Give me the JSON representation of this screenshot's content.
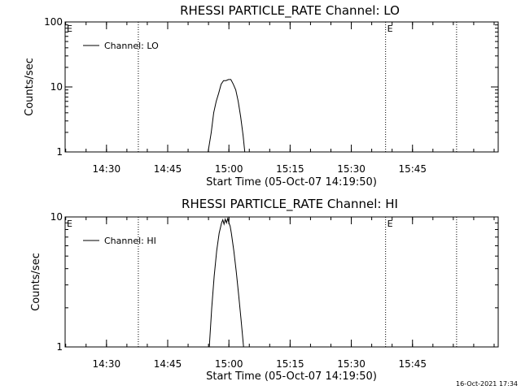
{
  "footer": {
    "timestamp": "16-Oct-2021 17:34"
  },
  "chart_data": [
    {
      "type": "line",
      "title": "RHESSI PARTICLE_RATE Channel: LO",
      "xlabel": "Start Time (05-Oct-07 14:19:50)",
      "ylabel": "Counts/sec",
      "yscale": "log",
      "xlim": [
        14.331,
        16.1
      ],
      "ylim": [
        1,
        100
      ],
      "xticks": [
        {
          "v": 14.5,
          "label": "14:30"
        },
        {
          "v": 14.75,
          "label": "14:45"
        },
        {
          "v": 15.0,
          "label": "15:00"
        },
        {
          "v": 15.25,
          "label": "15:15"
        },
        {
          "v": 15.5,
          "label": "15:30"
        },
        {
          "v": 15.75,
          "label": "15:45"
        }
      ],
      "yticks": [
        {
          "v": 1,
          "label": "1"
        },
        {
          "v": 10,
          "label": "10"
        },
        {
          "v": 100,
          "label": "100"
        }
      ],
      "grid": false,
      "legend": {
        "position": "top-left",
        "entries": [
          "Channel: LO"
        ]
      },
      "vlines": [
        14.63,
        15.64,
        15.93
      ],
      "markers": [
        {
          "x": 14.331,
          "text": "E"
        },
        {
          "x": 15.64,
          "text": "E"
        }
      ],
      "series": [
        {
          "name": "Channel: LO",
          "color": "#000000",
          "x": [
            14.915,
            14.928,
            14.938,
            14.948,
            14.958,
            14.968,
            14.978,
            14.988,
            14.998,
            15.008,
            15.018,
            15.028,
            15.038,
            15.048,
            15.058,
            15.065
          ],
          "y": [
            1.0,
            2.0,
            4.0,
            6.0,
            8.0,
            11.0,
            12.5,
            12.5,
            13.0,
            13.0,
            11.0,
            9.0,
            6.0,
            3.5,
            1.8,
            1.0
          ]
        }
      ]
    },
    {
      "type": "line",
      "title": "RHESSI PARTICLE_RATE Channel: HI",
      "xlabel": "Start Time (05-Oct-07 14:19:50)",
      "ylabel": "Counts/sec",
      "yscale": "log",
      "xlim": [
        14.331,
        16.1
      ],
      "ylim": [
        1,
        10
      ],
      "xticks": [
        {
          "v": 14.5,
          "label": "14:30"
        },
        {
          "v": 14.75,
          "label": "14:45"
        },
        {
          "v": 15.0,
          "label": "15:00"
        },
        {
          "v": 15.25,
          "label": "15:15"
        },
        {
          "v": 15.5,
          "label": "15:30"
        },
        {
          "v": 15.75,
          "label": "15:45"
        }
      ],
      "yticks": [
        {
          "v": 1,
          "label": "1"
        },
        {
          "v": 10,
          "label": "10"
        }
      ],
      "grid": false,
      "legend": {
        "position": "top-left",
        "entries": [
          "Channel: HI"
        ]
      },
      "vlines": [
        14.63,
        15.64,
        15.93
      ],
      "markers": [
        {
          "x": 14.331,
          "text": "E"
        },
        {
          "x": 15.64,
          "text": "E"
        }
      ],
      "series": [
        {
          "name": "Channel: HI",
          "color": "#000000",
          "x": [
            14.92,
            14.93,
            14.94,
            14.95,
            14.96,
            14.97,
            14.975,
            14.98,
            14.985,
            14.99,
            14.995,
            15.0,
            15.005,
            15.01,
            15.02,
            15.03,
            15.04,
            15.05,
            15.06
          ],
          "y": [
            1.0,
            2.0,
            3.5,
            5.5,
            7.5,
            9.0,
            9.5,
            8.8,
            9.6,
            9.0,
            9.7,
            9.0,
            8.5,
            7.5,
            5.5,
            3.8,
            2.5,
            1.6,
            1.0
          ]
        }
      ]
    }
  ]
}
